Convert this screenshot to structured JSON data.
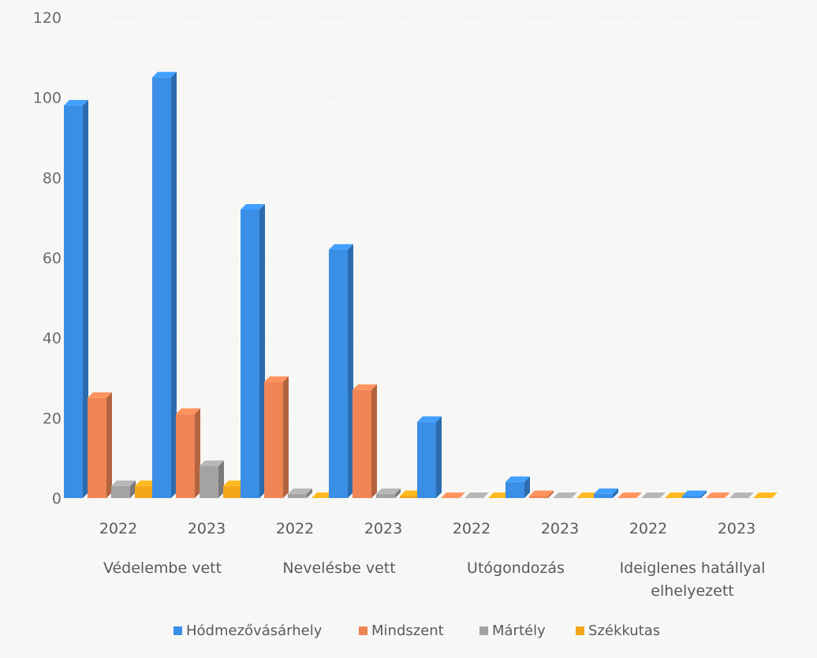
{
  "chart_data": {
    "type": "bar",
    "style": "3d-clustered-column",
    "title": "",
    "xlabel": "",
    "ylabel": "",
    "ylim": [
      0,
      120
    ],
    "yticks": [
      0,
      20,
      40,
      60,
      80,
      100,
      120
    ],
    "grid": true,
    "legend_position": "bottom",
    "groups": [
      {
        "label": "Védelembe vett",
        "years": [
          "2022",
          "2023"
        ]
      },
      {
        "label": "Nevelésbe vett",
        "years": [
          "2022",
          "2023"
        ]
      },
      {
        "label": "Utógondozás",
        "years": [
          "2022",
          "2023"
        ]
      },
      {
        "label": "Ideiglenes hatállyal elhelyezett",
        "years": [
          "2022",
          "2023"
        ]
      }
    ],
    "categories": [
      "2022",
      "2023",
      "2022",
      "2023",
      "2022",
      "2023",
      "2022",
      "2023"
    ],
    "series": [
      {
        "name": "Hódmezővásárhely",
        "color": "#3a8ee6",
        "values": [
          98,
          105,
          72,
          62,
          19,
          4,
          1,
          0.5
        ]
      },
      {
        "name": "Mindszent",
        "color": "#ef8455",
        "values": [
          25,
          21,
          29,
          27,
          0,
          0.5,
          0,
          0
        ]
      },
      {
        "name": "Mártély",
        "color": "#a3a3a3",
        "values": [
          3,
          8,
          1,
          1,
          0,
          0,
          0,
          0
        ]
      },
      {
        "name": "Székkutas",
        "color": "#f2a71b",
        "values": [
          3,
          3,
          0,
          0.5,
          0,
          0,
          0,
          0
        ]
      }
    ]
  }
}
